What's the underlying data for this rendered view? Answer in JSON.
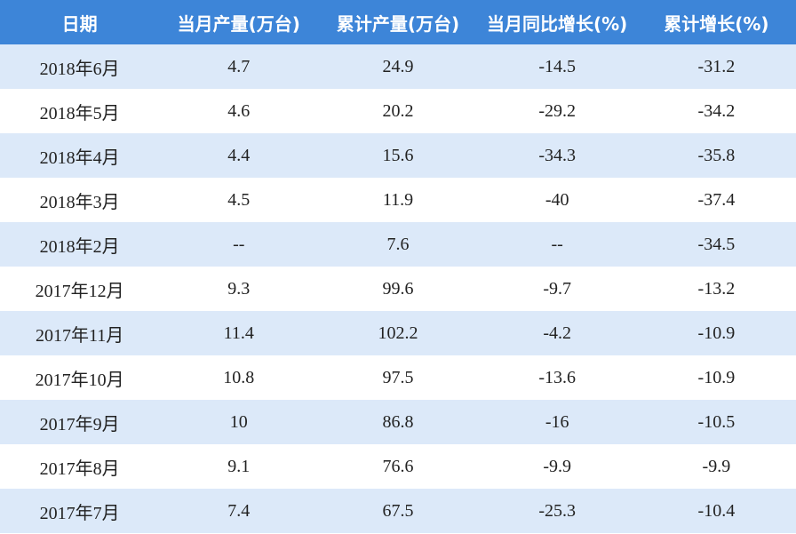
{
  "table": {
    "header": [
      "日期",
      "当月产量(万台)",
      "累计产量(万台)",
      "当月同比增长(%)",
      "累计增长(%)"
    ],
    "rows": [
      [
        "2018年6月",
        "4.7",
        "24.9",
        "-14.5",
        "-31.2"
      ],
      [
        "2018年5月",
        "4.6",
        "20.2",
        "-29.2",
        "-34.2"
      ],
      [
        "2018年4月",
        "4.4",
        "15.6",
        "-34.3",
        "-35.8"
      ],
      [
        "2018年3月",
        "4.5",
        "11.9",
        "-40",
        "-37.4"
      ],
      [
        "2018年2月",
        "--",
        "7.6",
        "--",
        "-34.5"
      ],
      [
        "2017年12月",
        "9.3",
        "99.6",
        "-9.7",
        "-13.2"
      ],
      [
        "2017年11月",
        "11.4",
        "102.2",
        "-4.2",
        "-10.9"
      ],
      [
        "2017年10月",
        "10.8",
        "97.5",
        "-13.6",
        "-10.9"
      ],
      [
        "2017年9月",
        "10",
        "86.8",
        "-16",
        "-10.5"
      ],
      [
        "2017年8月",
        "9.1",
        "76.6",
        "-9.9",
        "-9.9"
      ],
      [
        "2017年7月",
        "7.4",
        "67.5",
        "-25.3",
        "-10.4"
      ]
    ]
  }
}
